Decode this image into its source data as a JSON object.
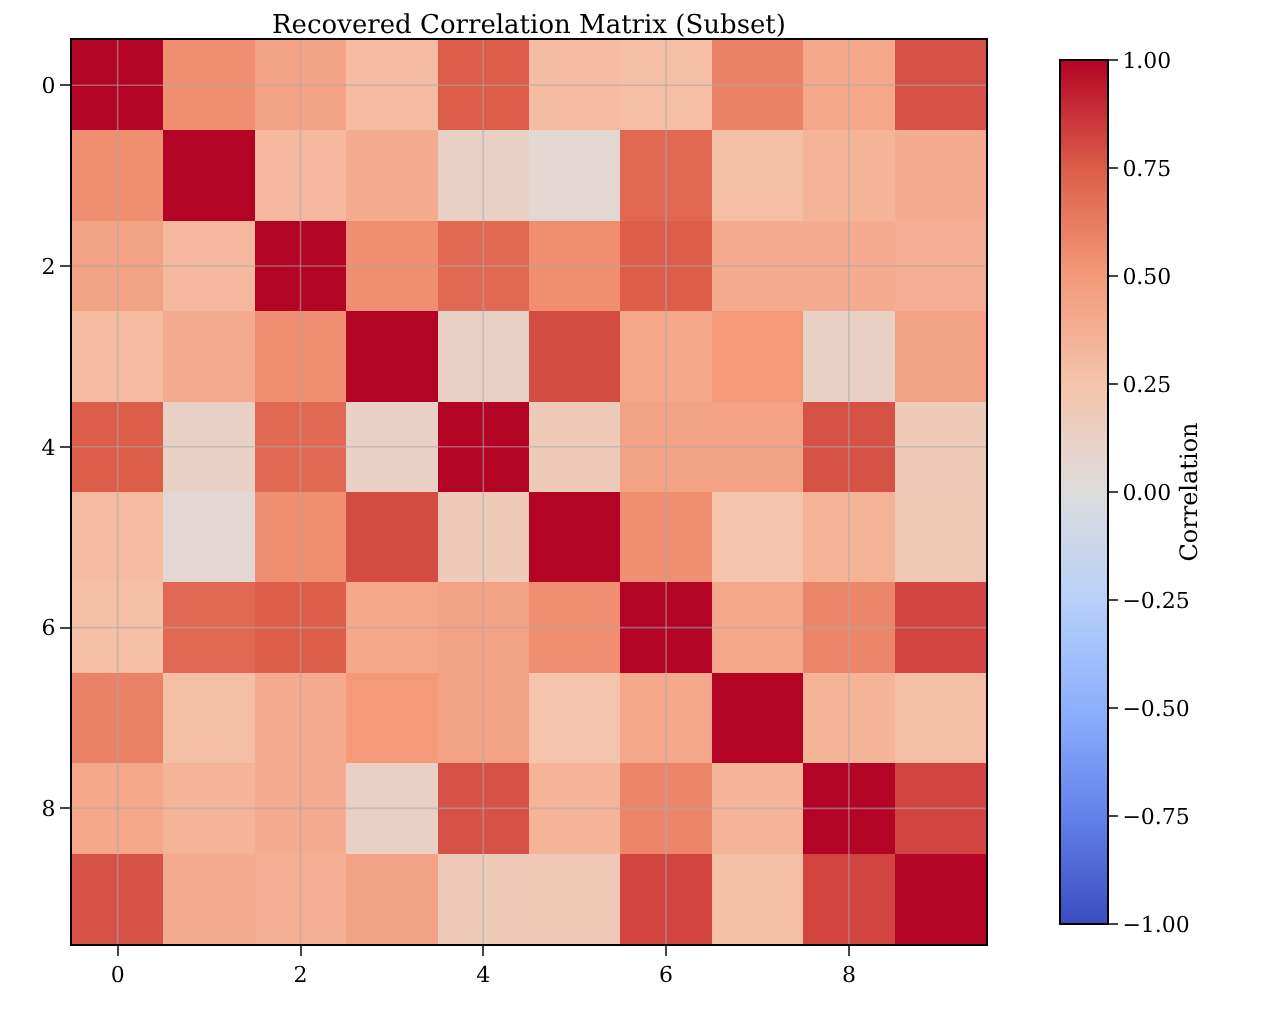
{
  "chart_data": {
    "type": "heatmap",
    "title": "Recovered Correlation Matrix (Subset)",
    "clabel": "Correlation",
    "categories": [
      "0",
      null,
      "2",
      null,
      "4",
      null,
      "6",
      null,
      "8",
      null
    ],
    "y_categories": [
      "0",
      null,
      "2",
      null,
      "4",
      null,
      "6",
      null,
      "8",
      null
    ],
    "cells": [
      [
        1,
        0.55,
        0.45,
        0.3,
        0.75,
        0.3,
        0.28,
        0.6,
        0.42,
        0.78
      ],
      [
        0.55,
        1,
        0.32,
        0.4,
        0.12,
        0.05,
        0.7,
        0.28,
        0.35,
        0.4
      ],
      [
        0.45,
        0.32,
        1,
        0.55,
        0.7,
        0.55,
        0.75,
        0.4,
        0.4,
        0.38
      ],
      [
        0.3,
        0.4,
        0.55,
        1,
        0.12,
        0.8,
        0.42,
        0.5,
        0.12,
        0.45
      ],
      [
        0.75,
        0.12,
        0.7,
        0.12,
        1,
        0.18,
        0.45,
        0.45,
        0.78,
        0.18
      ],
      [
        0.3,
        0.05,
        0.55,
        0.8,
        0.18,
        1,
        0.55,
        0.25,
        0.35,
        0.2
      ],
      [
        0.28,
        0.7,
        0.75,
        0.42,
        0.45,
        0.55,
        1,
        0.42,
        0.58,
        0.82
      ],
      [
        0.6,
        0.28,
        0.4,
        0.5,
        0.45,
        0.25,
        0.42,
        1,
        0.35,
        0.28
      ],
      [
        0.42,
        0.35,
        0.4,
        0.12,
        0.78,
        0.35,
        0.58,
        0.35,
        1,
        0.82
      ],
      [
        0.78,
        0.4,
        0.38,
        0.45,
        0.18,
        0.2,
        0.82,
        0.28,
        0.82,
        1
      ]
    ],
    "clim": [
      -1,
      1
    ],
    "cticks": [
      {
        "value": -1,
        "label": "−1.00"
      },
      {
        "value": -0.75,
        "label": "−0.75"
      },
      {
        "value": -0.5,
        "label": "−0.50"
      },
      {
        "value": -0.25,
        "label": "−0.25"
      },
      {
        "value": 0,
        "label": "0.00"
      },
      {
        "value": 0.25,
        "label": "0.25"
      },
      {
        "value": 0.5,
        "label": "0.50"
      },
      {
        "value": 0.75,
        "label": "0.75"
      },
      {
        "value": 1,
        "label": "1.00"
      }
    ],
    "grid": true
  }
}
